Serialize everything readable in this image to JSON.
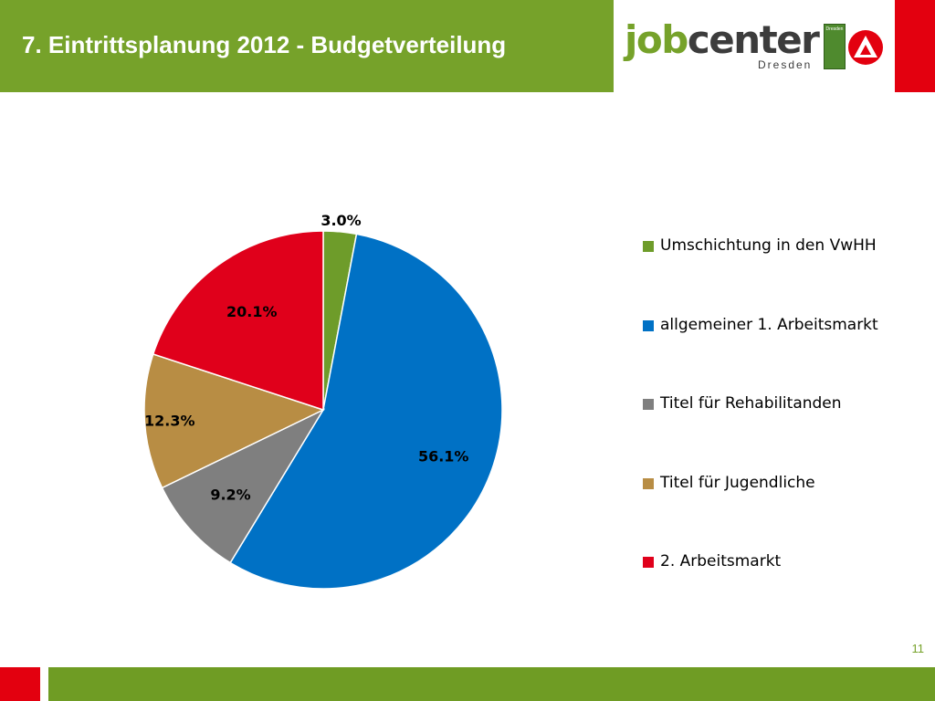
{
  "header": {
    "title": "7. Eintrittsplanung 2012 - Budgetverteilung",
    "logo_primary": "job",
    "logo_secondary": "center",
    "logo_sub": "Dresden",
    "crest_text": "Dresden"
  },
  "colors": {
    "header_green": "#76a22a",
    "accent_red": "#e3000f",
    "footer_green": "#6f9c24"
  },
  "page_number": "11",
  "chart_data": {
    "type": "pie",
    "categories": [
      "Umschichtung in den VwHH",
      "allgemeiner 1. Arbeitsmarkt",
      "Titel für Rehabilitanden",
      "Titel für Jugendliche",
      "2. Arbeitsmarkt"
    ],
    "values": [
      3.0,
      56.1,
      9.2,
      12.3,
      20.1
    ],
    "labels": [
      "3.0%",
      "56.1%",
      "9.2%",
      "12.3%",
      "20.1%"
    ],
    "colors": [
      "#6e9c2a",
      "#0071c5",
      "#7f7f7f",
      "#b88d44",
      "#e0001b"
    ],
    "start_angle": "12 o'clock",
    "direction": "clockwise",
    "legend_position": "right"
  }
}
